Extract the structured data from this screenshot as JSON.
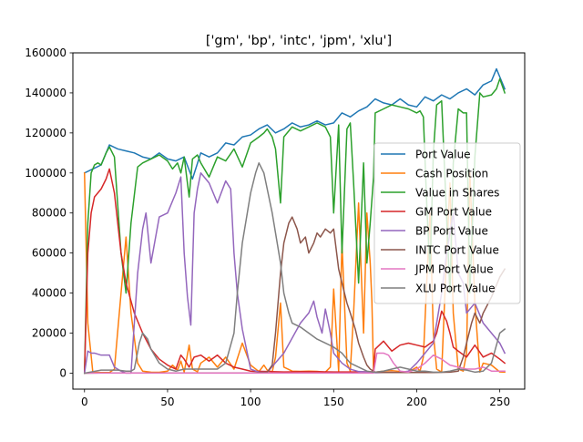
{
  "chart_data": {
    "type": "line",
    "title": "['gm', 'bp', 'intc', 'jpm', 'xlu']",
    "xlabel": "",
    "ylabel": "",
    "xlim": [
      -7,
      265
    ],
    "ylim": [
      -8000,
      160000
    ],
    "xticks": [
      0,
      50,
      100,
      150,
      200,
      250
    ],
    "xtick_labels": [
      "0",
      "50",
      "100",
      "150",
      "200",
      "250"
    ],
    "yticks": [
      0,
      20000,
      40000,
      60000,
      80000,
      100000,
      120000,
      140000,
      160000
    ],
    "ytick_labels": [
      "0",
      "20000",
      "40000",
      "60000",
      "80000",
      "100000",
      "120000",
      "140000",
      "160000"
    ],
    "grid": false,
    "legend_position": "center-right",
    "series": [
      {
        "name": "Port Value",
        "color": "#1f77b4",
        "x": [
          0,
          5,
          10,
          15,
          20,
          25,
          30,
          35,
          40,
          45,
          50,
          55,
          60,
          65,
          70,
          75,
          80,
          85,
          90,
          95,
          100,
          105,
          110,
          115,
          120,
          125,
          130,
          135,
          140,
          145,
          150,
          155,
          160,
          165,
          170,
          175,
          180,
          185,
          190,
          195,
          200,
          205,
          210,
          215,
          220,
          225,
          230,
          235,
          240,
          245,
          248,
          250,
          253
        ],
        "y": [
          100000,
          102000,
          104000,
          114000,
          112000,
          111000,
          110000,
          108000,
          107000,
          110000,
          107000,
          106000,
          108000,
          97000,
          110000,
          108000,
          110000,
          115000,
          114000,
          118000,
          119000,
          122000,
          124000,
          120000,
          122000,
          125000,
          123000,
          124000,
          126000,
          124000,
          125000,
          130000,
          128000,
          131000,
          133000,
          137000,
          135000,
          134000,
          137000,
          134000,
          133000,
          138000,
          136000,
          139000,
          137000,
          140000,
          142000,
          139000,
          144000,
          146000,
          152000,
          148000,
          142000
        ]
      },
      {
        "name": "Cash Position",
        "color": "#ff7f0e",
        "x": [
          0,
          2,
          5,
          10,
          15,
          18,
          22,
          25,
          28,
          32,
          35,
          40,
          45,
          50,
          53,
          56,
          58,
          60,
          63,
          65,
          68,
          70,
          75,
          80,
          85,
          90,
          95,
          100,
          105,
          108,
          110,
          113,
          115,
          118,
          120,
          125,
          130,
          135,
          140,
          145,
          148,
          150,
          153,
          155,
          158,
          160,
          162,
          165,
          168,
          170,
          172,
          173,
          174,
          175,
          180,
          185,
          190,
          195,
          200,
          202,
          204,
          206,
          208,
          210,
          212,
          215,
          218,
          220,
          222,
          225,
          228,
          230,
          232,
          235,
          238,
          240,
          245,
          250,
          253
        ],
        "y": [
          100000,
          25000,
          500,
          300,
          300,
          2000,
          40000,
          68000,
          30000,
          5000,
          1000,
          500,
          400,
          1000,
          4000,
          1500,
          6000,
          500,
          14000,
          2000,
          700,
          5000,
          8000,
          3000,
          8000,
          2000,
          15000,
          4000,
          800,
          4000,
          1500,
          600,
          8000,
          35000,
          3000,
          1000,
          900,
          1000,
          900,
          500,
          3000,
          42000,
          1000,
          65000,
          5000,
          1000,
          30000,
          85000,
          20000,
          80000,
          55000,
          36000,
          1000,
          500,
          1000,
          1200,
          800,
          500,
          3000,
          1000,
          8000,
          45000,
          80000,
          20000,
          2000,
          500,
          60000,
          95000,
          30000,
          2000,
          1000,
          10000,
          100000,
          35000,
          500,
          5000,
          4000,
          600,
          500
        ]
      },
      {
        "name": "Value in Shares",
        "color": "#2ca02c",
        "x": [
          0,
          2,
          4,
          6,
          8,
          10,
          13,
          15,
          18,
          22,
          25,
          28,
          32,
          35,
          40,
          45,
          50,
          53,
          56,
          58,
          60,
          63,
          65,
          68,
          70,
          75,
          80,
          85,
          90,
          95,
          100,
          105,
          108,
          110,
          113,
          115,
          118,
          120,
          125,
          130,
          135,
          140,
          145,
          148,
          150,
          153,
          155,
          158,
          160,
          162,
          165,
          168,
          170,
          172,
          174,
          175,
          180,
          185,
          190,
          195,
          200,
          202,
          204,
          206,
          208,
          210,
          212,
          215,
          218,
          220,
          222,
          225,
          228,
          230,
          232,
          235,
          238,
          240,
          245,
          248,
          250,
          253
        ],
        "y": [
          0,
          75000,
          100000,
          104000,
          105000,
          104000,
          110000,
          113000,
          108000,
          60000,
          40000,
          75000,
          103000,
          105000,
          107000,
          109000,
          106000,
          102000,
          105000,
          100000,
          108000,
          88000,
          107000,
          109000,
          105000,
          98000,
          108000,
          106000,
          112000,
          103000,
          115000,
          118000,
          120000,
          122000,
          118000,
          112000,
          85000,
          118000,
          123000,
          121000,
          123000,
          125000,
          123000,
          118000,
          80000,
          124000,
          60000,
          122000,
          125000,
          95000,
          45000,
          105000,
          55000,
          75000,
          98000,
          130000,
          132000,
          134000,
          133000,
          132000,
          130000,
          131000,
          128000,
          85000,
          50000,
          110000,
          134000,
          136000,
          78000,
          40000,
          105000,
          132000,
          130000,
          130000,
          40000,
          108000,
          140000,
          138000,
          139000,
          142000,
          147000,
          140000
        ]
      },
      {
        "name": "GM Port Value",
        "color": "#d62728",
        "x": [
          0,
          2,
          4,
          6,
          10,
          13,
          15,
          18,
          22,
          25,
          30,
          35,
          40,
          45,
          50,
          55,
          58,
          60,
          63,
          66,
          70,
          75,
          80,
          85,
          90,
          95,
          100,
          110,
          120,
          130,
          140,
          150,
          160,
          170,
          174,
          175,
          180,
          185,
          190,
          195,
          200,
          205,
          210,
          212,
          215,
          218,
          220,
          222,
          225,
          230,
          235,
          240,
          245,
          250,
          253
        ],
        "y": [
          0,
          60000,
          80000,
          88000,
          92000,
          97000,
          102000,
          90000,
          60000,
          45000,
          30000,
          20000,
          12000,
          7000,
          4000,
          2000,
          9000,
          7000,
          3000,
          8000,
          9000,
          6000,
          9000,
          5000,
          3000,
          2000,
          1000,
          800,
          600,
          700,
          700,
          600,
          600,
          700,
          700,
          12000,
          16000,
          11000,
          14000,
          15000,
          14000,
          13000,
          16000,
          20000,
          31000,
          26000,
          20000,
          13000,
          11000,
          8000,
          14000,
          8000,
          10000,
          7000,
          5000
        ]
      },
      {
        "name": "BP Port Value",
        "color": "#9467bd",
        "x": [
          0,
          2,
          4,
          6,
          10,
          15,
          18,
          22,
          25,
          28,
          32,
          35,
          37,
          40,
          45,
          50,
          55,
          58,
          60,
          62,
          64,
          66,
          68,
          70,
          75,
          80,
          85,
          88,
          90,
          92,
          95,
          98,
          100,
          105,
          110,
          120,
          130,
          135,
          138,
          140,
          143,
          145,
          148,
          150,
          155,
          160,
          165,
          170,
          174,
          175,
          180,
          185,
          190,
          195,
          200,
          205,
          210,
          215,
          218,
          220,
          222,
          225,
          228,
          230,
          235,
          240,
          245,
          250,
          253
        ],
        "y": [
          0,
          11000,
          10000,
          10000,
          9000,
          9000,
          3000,
          1000,
          0,
          0,
          50000,
          72000,
          80000,
          55000,
          78000,
          80000,
          90000,
          98000,
          60000,
          38000,
          24000,
          80000,
          92000,
          100000,
          95000,
          85000,
          96000,
          92000,
          60000,
          40000,
          22000,
          10000,
          2000,
          500,
          400,
          10000,
          25000,
          30000,
          36000,
          28000,
          20000,
          32000,
          20000,
          10000,
          5000,
          2000,
          800,
          600,
          500,
          200,
          300,
          400,
          300,
          1000,
          5000,
          10000,
          15000,
          40000,
          60000,
          70000,
          80000,
          50000,
          45000,
          30000,
          35000,
          25000,
          20000,
          15000,
          10000
        ]
      },
      {
        "name": "INTC Port Value",
        "color": "#8c564b",
        "x": [
          0,
          10,
          20,
          30,
          40,
          50,
          60,
          70,
          80,
          90,
          100,
          110,
          113,
          115,
          118,
          120,
          123,
          125,
          128,
          130,
          133,
          135,
          138,
          140,
          142,
          145,
          148,
          150,
          153,
          155,
          158,
          160,
          163,
          165,
          168,
          170,
          172,
          174,
          175,
          180,
          190,
          200,
          210,
          220,
          225,
          228,
          230,
          233,
          235,
          238,
          240,
          245,
          250,
          253
        ],
        "y": [
          0,
          100,
          100,
          100,
          100,
          100,
          100,
          100,
          100,
          100,
          100,
          500,
          4000,
          20000,
          50000,
          65000,
          75000,
          78000,
          72000,
          65000,
          68000,
          60000,
          65000,
          70000,
          68000,
          72000,
          70000,
          72000,
          52000,
          45000,
          35000,
          30000,
          22000,
          15000,
          8000,
          4000,
          2000,
          1000,
          500,
          300,
          300,
          300,
          300,
          500,
          1000,
          8000,
          15000,
          25000,
          30000,
          25000,
          30000,
          38000,
          48000,
          52000
        ]
      },
      {
        "name": "JPM Port Value",
        "color": "#e377c2",
        "x": [
          0,
          10,
          20,
          30,
          40,
          50,
          60,
          70,
          80,
          90,
          100,
          110,
          120,
          130,
          140,
          150,
          160,
          170,
          174,
          176,
          180,
          183,
          186,
          190,
          195,
          200,
          205,
          210,
          215,
          220,
          225,
          230,
          235,
          240,
          245,
          250,
          253
        ],
        "y": [
          0,
          0,
          0,
          0,
          0,
          0,
          0,
          0,
          0,
          0,
          0,
          0,
          0,
          0,
          0,
          0,
          0,
          0,
          0,
          10000,
          10000,
          9000,
          5000,
          1000,
          500,
          2000,
          5000,
          9000,
          7000,
          4000,
          3000,
          2000,
          2000,
          3000,
          1000,
          1000,
          1000
        ]
      },
      {
        "name": "XLU Port Value",
        "color": "#7f7f7f",
        "x": [
          0,
          10,
          20,
          25,
          28,
          30,
          33,
          35,
          38,
          40,
          45,
          50,
          55,
          60,
          65,
          70,
          75,
          80,
          85,
          90,
          92,
          95,
          98,
          100,
          103,
          105,
          108,
          110,
          113,
          115,
          118,
          120,
          123,
          125,
          130,
          135,
          140,
          145,
          150,
          155,
          160,
          165,
          170,
          174,
          175,
          180,
          185,
          190,
          195,
          200,
          205,
          210,
          215,
          220,
          225,
          230,
          235,
          240,
          245,
          250,
          253
        ],
        "y": [
          0,
          1500,
          1500,
          1000,
          1000,
          2000,
          15000,
          20000,
          17000,
          12000,
          5000,
          2000,
          1000,
          2000,
          2000,
          2000,
          2000,
          2000,
          5000,
          20000,
          40000,
          65000,
          80000,
          90000,
          100000,
          105000,
          100000,
          92000,
          80000,
          70000,
          55000,
          40000,
          30000,
          25000,
          23000,
          20000,
          17000,
          15000,
          13000,
          10000,
          5000,
          3000,
          1000,
          500,
          500,
          1000,
          2000,
          3000,
          2000,
          1000,
          1000,
          500,
          500,
          1000,
          2000,
          1500,
          500,
          1000,
          5000,
          20000,
          22000
        ]
      }
    ]
  }
}
